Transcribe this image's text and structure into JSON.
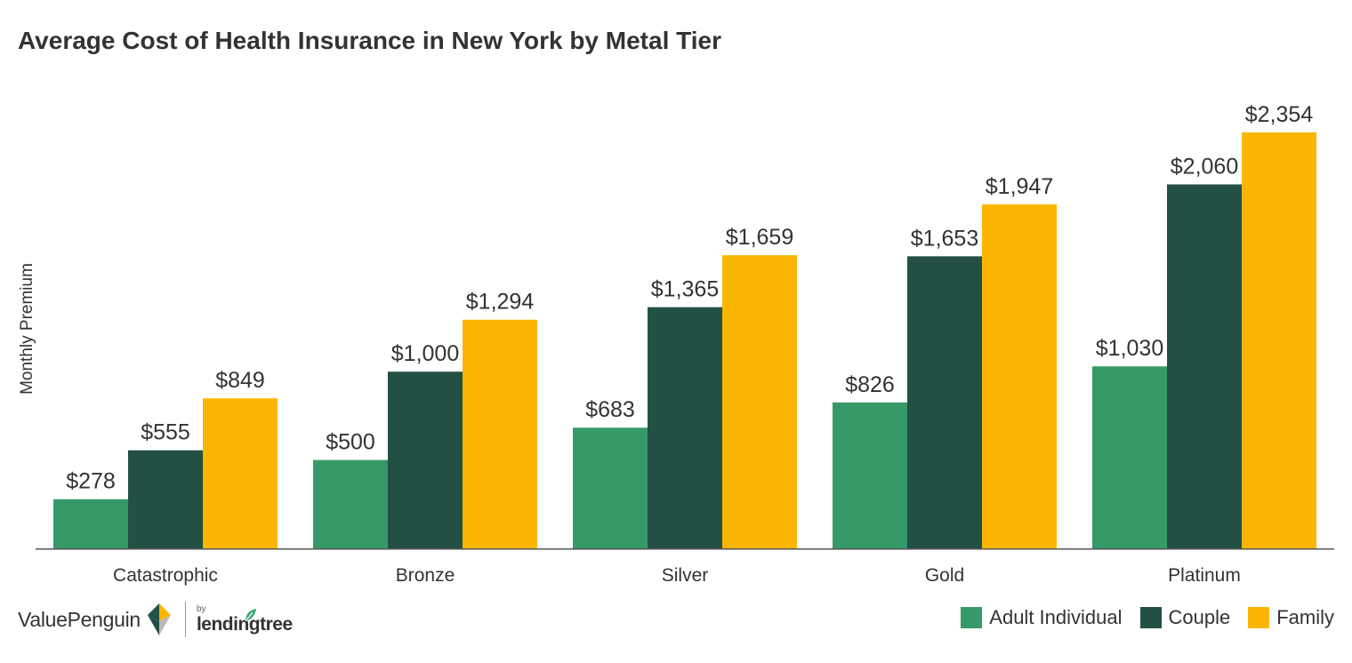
{
  "chart_data": {
    "type": "bar",
    "title": "Average Cost of Health Insurance in New York by Metal Tier",
    "xlabel": "",
    "ylabel": "Monthly Premium",
    "categories": [
      "Catastrophic",
      "Bronze",
      "Silver",
      "Gold",
      "Platinum"
    ],
    "series": [
      {
        "name": "Adult Individual",
        "values": [
          278,
          500,
          683,
          826,
          1030
        ],
        "labels": [
          "$278",
          "$500",
          "$683",
          "$826",
          "$1,030"
        ]
      },
      {
        "name": "Couple",
        "values": [
          555,
          1000,
          1365,
          1653,
          2060
        ],
        "labels": [
          "$555",
          "$1,000",
          "$1,365",
          "$1,653",
          "$2,060"
        ]
      },
      {
        "name": "Family",
        "values": [
          849,
          1294,
          1659,
          1947,
          2354
        ],
        "labels": [
          "$849",
          "$1,294",
          "$1,659",
          "$1,947",
          "$2,354"
        ]
      }
    ],
    "ylim": [
      0,
      2354
    ],
    "grid": false,
    "legend_position": "bottom-right"
  },
  "colors": {
    "Adult Individual": "#359a68",
    "Couple": "#225045",
    "Family": "#fbb603",
    "text": "#333333",
    "axis": "#555555"
  },
  "branding": {
    "valuepenguin": "ValuePenguin",
    "by": "by",
    "lendingtree": "lendingtree"
  },
  "icons": {
    "valuepenguin_logo": "valuepenguin-logo-icon",
    "lendingtree_leaf": "leaf-icon"
  }
}
